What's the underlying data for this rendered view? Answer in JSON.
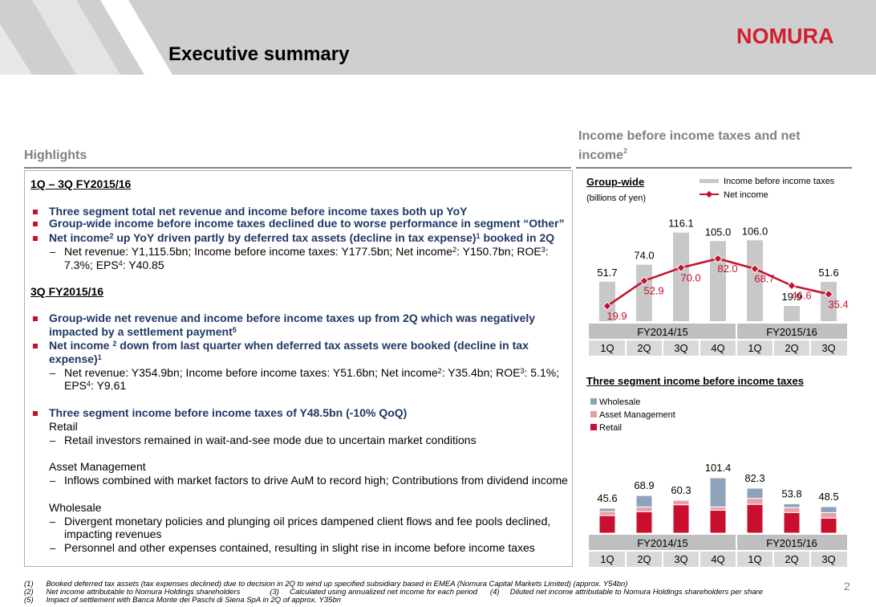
{
  "header": {
    "title": "Executive summary",
    "logo": "NOMURA"
  },
  "highlights": {
    "heading": "Highlights",
    "period1": "1Q – 3Q FY2015/16",
    "p1b1": "Three segment total net revenue and income before income taxes both up YoY",
    "p1b2": "Group-wide income before income taxes declined due to worse performance in segment “Other”",
    "p1b3a": "Net income",
    "p1b3sup": "2",
    "p1b3b": " up YoY driven partly by deferred tax assets (decline in tax expense)",
    "p1b3sup2": "1",
    "p1b3c": " booked in 2Q",
    "p1s1a": "Net revenue: Y1,115.5bn; Income before income taxes: Y177.5bn; Net income",
    "p1s1sup": "2",
    "p1s1b": ": Y150.7bn; ROE",
    "p1s1sup2": "3",
    "p1s1c": ":",
    "p1s1d": "7.3%; EPS",
    "p1s1sup3": "4",
    "p1s1e": ": Y40.85",
    "period2": "3Q FY2015/16",
    "p2b1a": "Group-wide net revenue and income before income taxes up from 2Q which was negatively",
    "p2b1b": "impacted by a settlement payment",
    "p2b1sup": "5",
    "p2b2a": "Net income ",
    "p2b2sup": "2",
    "p2b2b": " down from last quarter when deferred tax assets were booked (decline in tax",
    "p2b2c": "expense)",
    "p2b2sup2": "1",
    "p2s1a": "Net revenue: Y354.9bn; Income before income taxes: Y51.6bn; Net income",
    "p2s1sup": "2",
    "p2s1b": ": Y35.4bn; ROE",
    "p2s1sup2": "3",
    "p2s1c": ": 5.1%;",
    "p2s1d": "EPS",
    "p2s1sup3": "4",
    "p2s1e": ": Y9.61",
    "p3b1": "Three segment income before income taxes of Y48.5bn (-10% QoQ)",
    "retail": "Retail",
    "retail_s": "Retail investors remained in wait-and-see mode due to uncertain market conditions",
    "am": "Asset Management",
    "am_s": "Inflows combined with market factors to drive AuM to record high; Contributions from dividend income",
    "wholesale": "Wholesale",
    "ws_s1a": "Divergent monetary policies and plunging oil prices dampened client flows and fee pools declined,",
    "ws_s1b": "impacting revenues",
    "ws_s2": "Personnel and other expenses contained, resulting in slight  rise in income before income taxes",
    "dash": "–"
  },
  "right": {
    "heading1": "Income before income taxes and net",
    "heading2": "income",
    "heading_sup": "2",
    "chart1_title": "Group-wide",
    "chart1_unit": "(billions of yen)",
    "chart2_title": "Three segment income before income taxes"
  },
  "chart_data": [
    {
      "type": "bar",
      "title": "Group-wide",
      "ylabel": "(billions of yen)",
      "categories": [
        "1Q",
        "2Q",
        "3Q",
        "4Q",
        "1Q",
        "2Q",
        "3Q"
      ],
      "groups": [
        "FY2014/15",
        "FY2015/16"
      ],
      "series": [
        {
          "name": "Income before income taxes",
          "type": "bar",
          "color": "#c8c8c8",
          "values": [
            51.7,
            74.0,
            116.1,
            105.0,
            106.0,
            19.9,
            51.6
          ],
          "labels": [
            "51.7",
            "74.0",
            "116.1",
            "105.0",
            "106.0",
            "19.9",
            "51.6"
          ]
        },
        {
          "name": "Net income",
          "type": "line",
          "color": "#c8102e",
          "values": [
            19.9,
            52.9,
            70.0,
            82.0,
            68.7,
            46.6,
            35.4
          ],
          "labels": [
            "19.9",
            "52.9",
            "70.0",
            "82.0",
            "68.7",
            "46.6",
            "35.4"
          ]
        }
      ]
    },
    {
      "type": "bar",
      "stacked": true,
      "title": "Three segment income before income taxes",
      "categories": [
        "1Q",
        "2Q",
        "3Q",
        "4Q",
        "1Q",
        "2Q",
        "3Q"
      ],
      "groups": [
        "FY2014/15",
        "FY2015/16"
      ],
      "totals": [
        "45.6",
        "68.9",
        "60.3",
        "101.4",
        "82.3",
        "53.8",
        "48.5"
      ],
      "series": [
        {
          "name": "Retail",
          "color": "#c8102e",
          "values": [
            32.2,
            39.4,
            52.0,
            42.0,
            52.7,
            37.8,
            27.6
          ]
        },
        {
          "name": "Asset Management",
          "color": "#e8a0a8",
          "values": [
            7.5,
            8.5,
            8.3,
            6.0,
            11.0,
            9.0,
            10.0
          ]
        },
        {
          "name": "Wholesale",
          "color": "#8ea3bb",
          "values": [
            5.9,
            21.0,
            0.0,
            53.4,
            18.6,
            7.0,
            10.9
          ]
        }
      ]
    }
  ],
  "footnotes": {
    "f1n": "(1)",
    "f1": "Booked deferred tax assets (tax expenses declined) due to decision in 2Q to wind up specified subsidiary based in EMEA (Nomura Capital Markets Limited) (approx. Y54bn)",
    "f2n": "(2)",
    "f2": "Net income attributable to Nomura Holdings shareholders",
    "f3n": "(3)",
    "f3": "Calculated using annualized net income for each period",
    "f4n": "(4)",
    "f4": "Diluted net income attributable to Nomura Holdings shareholders per share",
    "f5n": "(5)",
    "f5": "Impact of settlement with Banca Monte dei Paschi di Siena SpA in 2Q of approx. Y35bn"
  },
  "page_number": "2"
}
